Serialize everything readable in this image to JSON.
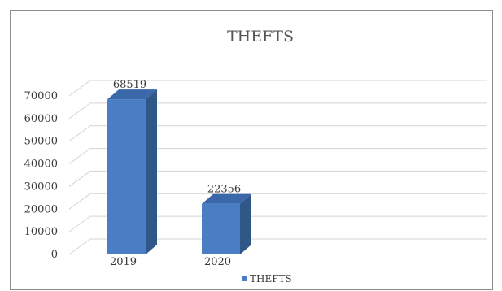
{
  "chart_data": {
    "type": "bar",
    "title": "THEFTS",
    "categories": [
      "2019",
      "2020"
    ],
    "series": [
      {
        "name": "THEFTS",
        "values": [
          68519,
          22356
        ]
      }
    ],
    "data_labels": [
      "68519",
      "22356"
    ],
    "ylim": [
      0,
      70000
    ],
    "yticks": [
      0,
      10000,
      20000,
      30000,
      40000,
      50000,
      60000,
      70000
    ],
    "ytick_labels": [
      "0",
      "10000",
      "20000",
      "30000",
      "40000",
      "50000",
      "60000",
      "70000"
    ],
    "xlabel": "",
    "ylabel": "",
    "grid": true,
    "legend": "bottom",
    "style": "3d-column",
    "colors": {
      "bar_front": "#4a7ec4",
      "bar_side": "#2f5788",
      "bar_top": "#3a68a8"
    }
  }
}
